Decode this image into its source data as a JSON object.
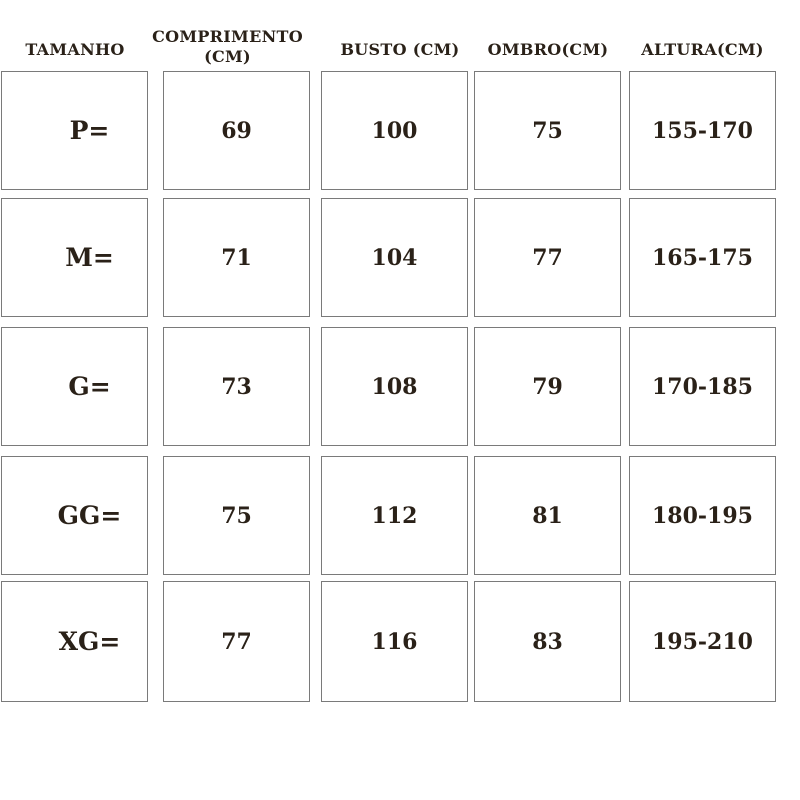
{
  "headers": [
    "TAMANHO",
    "COMPRIMENTO (CM)",
    "BUSTO (CM)",
    "OMBRO(CM)",
    "ALTURA(CM)"
  ],
  "header_comprimento_lines": [
    "COMPRIMENTO",
    "(CM)"
  ],
  "rows": [
    [
      "P=",
      "69",
      "100",
      "75",
      "155-170"
    ],
    [
      "M=",
      "71",
      "104",
      "77",
      "165-175"
    ],
    [
      "G=",
      "73",
      "108",
      "79",
      "170-185"
    ],
    [
      "GG=",
      "75",
      "112",
      "81",
      "180-195"
    ],
    [
      "XG=",
      "77",
      "116",
      "83",
      "195-210"
    ]
  ],
  "colors": {
    "text": "#2a2118",
    "border": "#7a7a7a"
  }
}
